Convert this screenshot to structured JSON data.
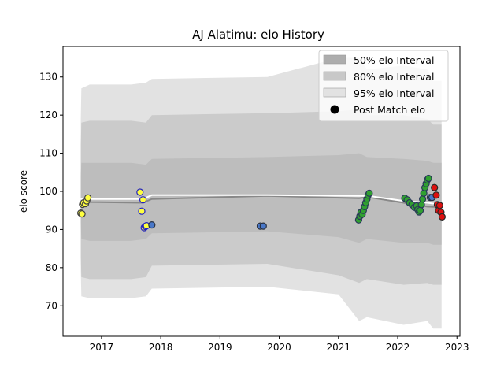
{
  "chart_data": {
    "type": "scatter",
    "title": "AJ Alatimu: elo History",
    "xlabel": "",
    "ylabel": "elo score",
    "xlim": [
      2016.35,
      2023.05
    ],
    "ylim": [
      62,
      138
    ],
    "x_ticks": [
      2017,
      2018,
      2019,
      2020,
      2021,
      2022,
      2023
    ],
    "y_ticks": [
      70,
      80,
      90,
      100,
      110,
      120,
      130
    ],
    "grid": false,
    "legend": {
      "placement": "top-right",
      "entries": [
        {
          "label": "50% elo Interval",
          "kind": "band",
          "color": "#adadad"
        },
        {
          "label": "80% elo Interval",
          "kind": "band",
          "color": "#c8c8c8"
        },
        {
          "label": "95% elo Interval",
          "kind": "band",
          "color": "#e2e2e2"
        },
        {
          "label": "Post Match elo",
          "kind": "marker",
          "color": "#000000"
        }
      ]
    },
    "bands": [
      {
        "name": "95% elo Interval",
        "color": "#e2e2e2",
        "x": [
          2016.65,
          2016.66,
          2016.8,
          2017.5,
          2017.75,
          2017.85,
          2019.8,
          2021.0,
          2021.35,
          2021.48,
          2022.1,
          2022.5,
          2022.6,
          2022.74
        ],
        "upper": [
          119,
          127,
          128,
          128,
          128.5,
          129.5,
          130,
          135,
          135,
          132,
          133,
          132,
          129,
          129
        ],
        "lower": [
          79,
          72.5,
          72,
          72,
          72.5,
          74.5,
          75,
          73,
          66,
          67,
          65,
          66,
          64,
          64
        ]
      },
      {
        "name": "80% elo Interval",
        "color": "#cbcbcb",
        "x": [
          2016.65,
          2016.66,
          2016.8,
          2017.5,
          2017.75,
          2017.85,
          2019.8,
          2021.0,
          2021.35,
          2021.48,
          2022.1,
          2022.5,
          2022.6,
          2022.74
        ],
        "upper": [
          112,
          118,
          118.5,
          118.5,
          118,
          120,
          120.5,
          121,
          121.5,
          120,
          120,
          119,
          117.5,
          117.5
        ],
        "lower": [
          83,
          77.5,
          77,
          77,
          77.5,
          80.5,
          81,
          78,
          76,
          77,
          75.5,
          76,
          75.5,
          75.5
        ]
      },
      {
        "name": "50% elo Interval",
        "color": "#bdbdbd",
        "x": [
          2016.65,
          2016.66,
          2016.8,
          2017.5,
          2017.75,
          2017.85,
          2019.8,
          2021.0,
          2021.35,
          2021.48,
          2022.1,
          2022.5,
          2022.6,
          2022.74
        ],
        "upper": [
          104,
          107.5,
          107.5,
          107.5,
          107,
          108.5,
          109,
          109.5,
          110,
          109,
          108.5,
          108,
          107.5,
          107.5
        ],
        "lower": [
          92,
          87.5,
          87,
          87,
          87.5,
          89,
          89.5,
          88,
          86.5,
          87.5,
          86.5,
          86.5,
          86,
          86
        ]
      }
    ],
    "lines": [
      {
        "name": "mean",
        "color": "#888888",
        "x": [
          2016.65,
          2016.8,
          2017.7,
          2017.85,
          2019.8,
          2021.35,
          2021.5,
          2022.1,
          2022.5,
          2022.74
        ],
        "y": [
          97.5,
          97.2,
          97,
          98,
          98.8,
          98.2,
          98.5,
          97,
          96,
          95.8
        ]
      },
      {
        "name": "median",
        "color": "#ffffff",
        "x": [
          2016.65,
          2016.8,
          2017.7,
          2017.85,
          2019.8,
          2021.35,
          2021.5,
          2022.1,
          2022.5,
          2022.74
        ],
        "y": [
          98,
          98,
          98,
          99,
          99,
          98.8,
          98.8,
          97.5,
          97,
          96.5
        ]
      }
    ],
    "series": [
      {
        "fill": "#ffff40",
        "edge": "#404040",
        "x": [
          2016.65,
          2016.67,
          2016.68,
          2016.7,
          2016.73,
          2016.75,
          2016.77
        ],
        "y": [
          94.3,
          94.1,
          96.6,
          97.0,
          96.8,
          97.5,
          98.3
        ]
      },
      {
        "fill": "#ffff40",
        "edge": "#2020c0",
        "x": [
          2017.65,
          2017.68,
          2017.7,
          2017.72,
          2017.74,
          2017.76
        ],
        "y": [
          99.8,
          94.8,
          97.8,
          90.5,
          90.8,
          91.0
        ]
      },
      {
        "fill": "#4a78c8",
        "edge": "#283040",
        "x": [
          2017.85,
          2019.68,
          2019.73
        ],
        "y": [
          91.2,
          90.9,
          90.9
        ]
      },
      {
        "fill": "#30a030",
        "edge": "#283858",
        "x": [
          2021.34,
          2021.36,
          2021.38,
          2021.4,
          2021.42,
          2021.44,
          2021.46,
          2021.48,
          2021.5,
          2021.52
        ],
        "y": [
          92.5,
          93.5,
          94.5,
          94.0,
          95.0,
          96.0,
          97.0,
          98.0,
          99.0,
          99.5
        ]
      },
      {
        "fill": "#30a030",
        "edge": "#283858",
        "x": [
          2022.12,
          2022.16,
          2022.2,
          2022.24,
          2022.28,
          2022.32,
          2022.34,
          2022.36,
          2022.38,
          2022.4,
          2022.42,
          2022.44,
          2022.46,
          2022.48,
          2022.5,
          2022.52
        ],
        "y": [
          98.2,
          97.8,
          97.0,
          96.5,
          95.8,
          96.2,
          95.2,
          94.6,
          95.0,
          96.5,
          98.0,
          99.5,
          101.0,
          102.0,
          103.0,
          103.4
        ]
      },
      {
        "fill": "#4a78c8",
        "edge": "#283040",
        "x": [
          2022.55,
          2022.58
        ],
        "y": [
          98.4,
          98.4
        ]
      },
      {
        "fill": "#dd1010",
        "edge": "#282828",
        "x": [
          2022.62,
          2022.65,
          2022.67,
          2022.69,
          2022.71,
          2022.73,
          2022.75
        ],
        "y": [
          101.0,
          99.0,
          96.5,
          95.0,
          96.3,
          94.5,
          93.3
        ]
      }
    ]
  }
}
